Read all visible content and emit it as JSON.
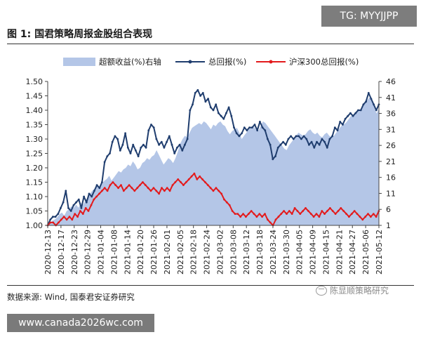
{
  "header": {
    "title": "图 1: 国君策略周报金股组合表现",
    "badge": "TG: MYYJJPP"
  },
  "footer": {
    "source": "数据来源: Wind, 国泰君安证券研究",
    "watermark": "陈显顺策略研究",
    "url": "www.canada2026wc.com"
  },
  "chart_data": {
    "type": "line",
    "x_ticks": [
      "2020-12-13",
      "2020-12-17",
      "2020-12-23",
      "2020-12-29",
      "2021-01-04",
      "2021-01-08",
      "2021-01-14",
      "2021-01-20",
      "2021-01-26",
      "2021-02-01",
      "2021-02-05",
      "2021-02-18",
      "2021-02-24",
      "2021-03-02",
      "2021-03-08",
      "2021-03-12",
      "2021-03-18",
      "2021-03-24",
      "2021-03-30",
      "2021-04-05",
      "2021-04-09",
      "2021-04-15",
      "2021-04-21",
      "2021-04-27",
      "2021-05-06",
      "2021-05-12"
    ],
    "y_left": {
      "ticks": [
        "1.00",
        "1.05",
        "1.10",
        "1.15",
        "1.20",
        "1.25",
        "1.30",
        "1.35",
        "1.40",
        "1.45",
        "1.50"
      ],
      "range": [
        1.0,
        1.5
      ]
    },
    "y_right": {
      "ticks": [
        "1",
        "6",
        "11",
        "16",
        "21",
        "26",
        "31",
        "36",
        "41",
        "46"
      ],
      "range": [
        1,
        46
      ]
    },
    "colors": {
      "area": "#b4c6e7",
      "total": "#1f3d6e",
      "hs300": "#e31a1c"
    },
    "series": [
      {
        "name": "超额收益(%)右轴",
        "axis": "right",
        "kind": "area",
        "values": [
          0.0,
          0.8,
          1.5,
          1.8,
          2.5,
          3.5,
          4.0,
          3.0,
          4.5,
          5.0,
          6.0,
          5.5,
          6.5,
          5.5,
          7.0,
          6.5,
          8.0,
          8.5,
          10.0,
          11.0,
          11.5,
          12.5,
          12.0,
          13.0,
          14.0,
          14.5,
          15.5,
          14.0,
          15.0,
          16.0,
          17.0,
          16.5,
          17.5,
          18.0,
          19.0,
          18.5,
          20.0,
          19.0,
          17.5,
          18.0,
          19.5,
          20.0,
          21.0,
          20.5,
          21.5,
          22.0,
          23.5,
          22.0,
          20.5,
          19.0,
          20.0,
          21.0,
          20.5,
          19.5,
          21.0,
          23.0,
          25.5,
          27.0,
          28.0,
          27.5,
          29.0,
          30.5,
          31.0,
          31.5,
          32.0,
          31.5,
          32.5,
          32.0,
          31.0,
          30.0,
          31.5,
          31.0,
          32.0,
          32.5,
          31.5,
          31.0,
          29.5,
          28.5,
          29.5,
          30.0,
          30.5,
          29.0,
          27.0,
          28.0,
          29.0,
          30.0,
          30.5,
          31.0,
          30.0,
          29.5,
          31.0,
          32.5,
          32.0,
          31.0,
          30.0,
          29.0,
          28.0,
          27.0,
          26.0,
          25.0,
          24.0,
          23.5,
          25.0,
          26.0,
          27.0,
          28.0,
          29.0,
          28.5,
          28.0,
          28.5,
          29.5,
          30.0,
          29.0,
          28.5,
          29.0,
          28.0,
          27.5,
          28.5,
          29.0,
          28.0,
          27.5,
          28.0,
          29.0,
          30.0,
          31.0,
          31.5,
          32.0,
          33.0,
          34.0,
          34.5,
          35.0,
          35.5,
          36.0,
          37.0,
          38.0,
          39.0,
          40.0,
          39.0,
          37.0,
          35.0,
          36.5
        ]
      },
      {
        "name": "总回报(%)",
        "axis": "left",
        "kind": "line",
        "values": [
          1.0,
          1.02,
          1.03,
          1.03,
          1.04,
          1.06,
          1.08,
          1.12,
          1.06,
          1.05,
          1.07,
          1.08,
          1.09,
          1.06,
          1.1,
          1.08,
          1.11,
          1.1,
          1.12,
          1.14,
          1.13,
          1.15,
          1.22,
          1.24,
          1.25,
          1.29,
          1.31,
          1.3,
          1.26,
          1.28,
          1.32,
          1.27,
          1.25,
          1.28,
          1.26,
          1.24,
          1.27,
          1.28,
          1.27,
          1.33,
          1.35,
          1.34,
          1.3,
          1.28,
          1.29,
          1.27,
          1.29,
          1.31,
          1.28,
          1.25,
          1.27,
          1.28,
          1.26,
          1.28,
          1.3,
          1.4,
          1.42,
          1.46,
          1.47,
          1.45,
          1.46,
          1.43,
          1.44,
          1.41,
          1.4,
          1.42,
          1.39,
          1.38,
          1.37,
          1.39,
          1.41,
          1.38,
          1.34,
          1.32,
          1.31,
          1.32,
          1.34,
          1.33,
          1.34,
          1.34,
          1.35,
          1.33,
          1.36,
          1.34,
          1.33,
          1.3,
          1.28,
          1.23,
          1.24,
          1.27,
          1.28,
          1.29,
          1.28,
          1.3,
          1.31,
          1.3,
          1.31,
          1.31,
          1.3,
          1.31,
          1.3,
          1.28,
          1.29,
          1.27,
          1.29,
          1.28,
          1.3,
          1.29,
          1.27,
          1.3,
          1.31,
          1.34,
          1.33,
          1.36,
          1.35,
          1.37,
          1.38,
          1.39,
          1.38,
          1.39,
          1.4,
          1.4,
          1.42,
          1.43,
          1.46,
          1.44,
          1.42,
          1.4,
          1.42
        ]
      },
      {
        "name": "沪深300总回报(%)",
        "axis": "left",
        "kind": "line",
        "values": [
          1.0,
          1.01,
          1.01,
          1.0,
          1.01,
          1.02,
          1.03,
          1.02,
          1.03,
          1.02,
          1.04,
          1.03,
          1.05,
          1.04,
          1.06,
          1.05,
          1.07,
          1.09,
          1.1,
          1.11,
          1.12,
          1.13,
          1.12,
          1.14,
          1.15,
          1.14,
          1.13,
          1.14,
          1.12,
          1.13,
          1.14,
          1.13,
          1.12,
          1.13,
          1.14,
          1.15,
          1.14,
          1.13,
          1.12,
          1.13,
          1.12,
          1.11,
          1.13,
          1.12,
          1.13,
          1.12,
          1.14,
          1.15,
          1.16,
          1.15,
          1.14,
          1.15,
          1.16,
          1.17,
          1.18,
          1.16,
          1.17,
          1.16,
          1.15,
          1.14,
          1.13,
          1.12,
          1.13,
          1.12,
          1.11,
          1.09,
          1.08,
          1.07,
          1.05,
          1.04,
          1.04,
          1.03,
          1.04,
          1.03,
          1.04,
          1.05,
          1.04,
          1.03,
          1.04,
          1.03,
          1.04,
          1.02,
          1.01,
          1.0,
          1.02,
          1.03,
          1.04,
          1.05,
          1.04,
          1.05,
          1.04,
          1.06,
          1.05,
          1.04,
          1.05,
          1.06,
          1.05,
          1.04,
          1.03,
          1.04,
          1.03,
          1.05,
          1.04,
          1.05,
          1.06,
          1.05,
          1.04,
          1.05,
          1.06,
          1.05,
          1.04,
          1.03,
          1.04,
          1.05,
          1.04,
          1.03,
          1.02,
          1.03,
          1.04,
          1.03,
          1.04,
          1.03,
          1.05
        ]
      }
    ],
    "legend": {
      "placement": "top"
    },
    "grid": false
  }
}
